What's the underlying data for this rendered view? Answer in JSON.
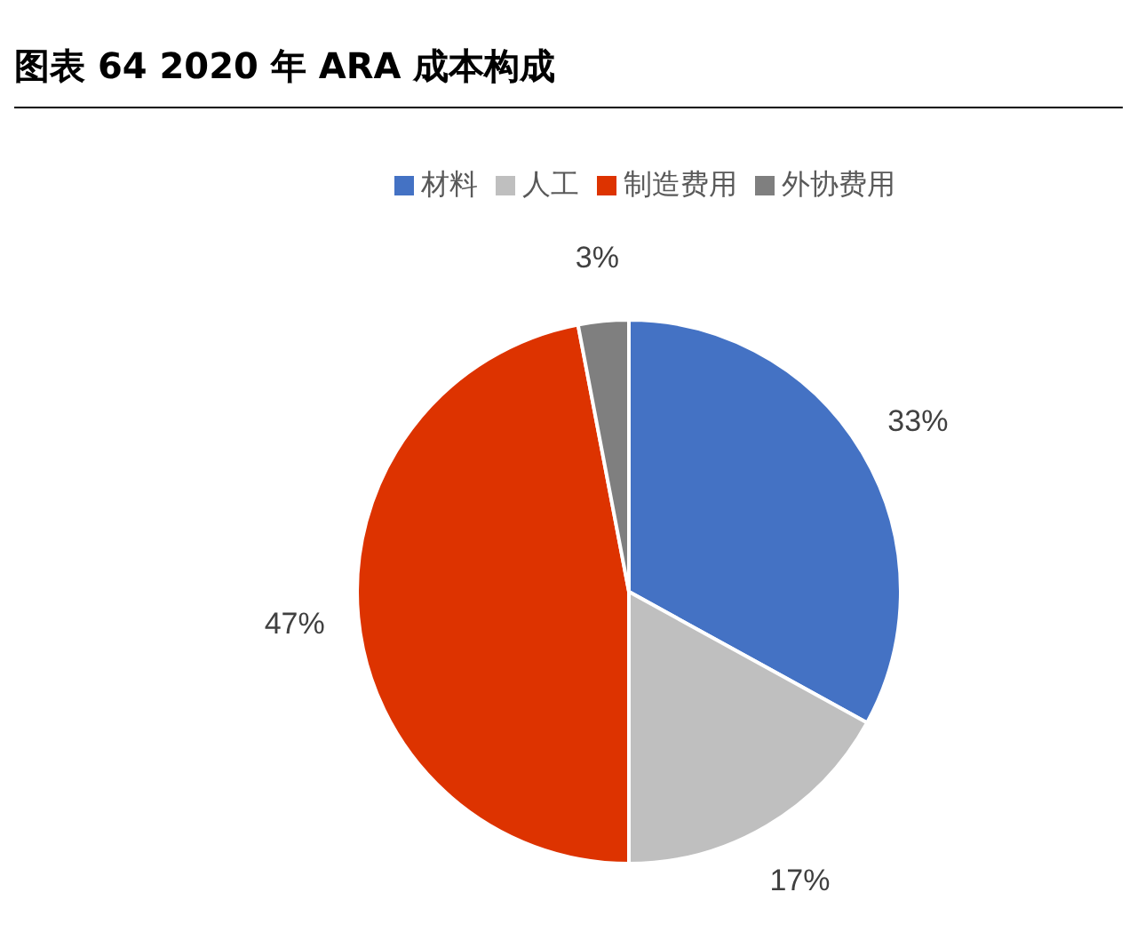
{
  "chart_data": {
    "type": "pie",
    "title": "图表 64 2020 年 ARA 成本构成",
    "categories": [
      "材料",
      "人工",
      "制造费用",
      "外协费用"
    ],
    "values": [
      33,
      17,
      47,
      3
    ],
    "colors": [
      "#4472c4",
      "#bfbfbf",
      "#dd3300",
      "#7f7f7f"
    ],
    "value_labels": [
      "33%",
      "17%",
      "47%",
      "3%"
    ],
    "legend": "top"
  }
}
